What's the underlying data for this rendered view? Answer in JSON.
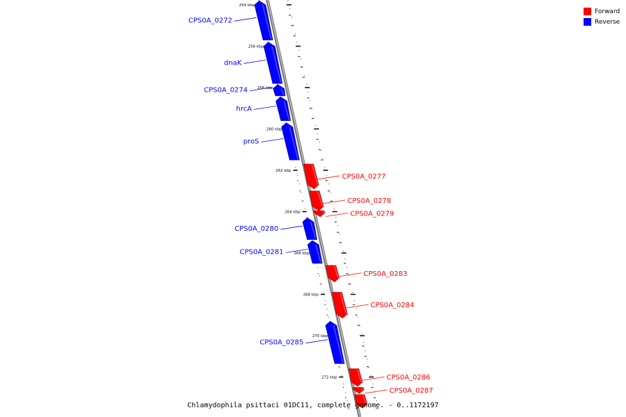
{
  "colors": {
    "forward": "#ff0000",
    "reverse": "#0000ff",
    "backbone": "#808080"
  },
  "legend": [
    {
      "label": "Forward",
      "color": "#ff0000"
    },
    {
      "label": "Reverse",
      "color": "#0000ff"
    }
  ],
  "caption": "Chlamydophila psittaci 01DC11, complete genome. - 0..1172197",
  "ticks": [
    {
      "kbp": 254,
      "label": "254 kbp"
    },
    {
      "kbp": 256,
      "label": "256 kbp"
    },
    {
      "kbp": 258,
      "label": "258 kbp"
    },
    {
      "kbp": 260,
      "label": "260 kbp"
    },
    {
      "kbp": 262,
      "label": "262 kbp"
    },
    {
      "kbp": 264,
      "label": "264 kbp"
    },
    {
      "kbp": 266,
      "label": "266 kbp"
    },
    {
      "kbp": 268,
      "label": "268 kbp"
    },
    {
      "kbp": 270,
      "label": "270 kbp"
    },
    {
      "kbp": 272,
      "label": "272 kbp"
    }
  ],
  "genes": [
    {
      "name": "CPS0A_0272",
      "strand": "reverse",
      "start_kbp": 253.8,
      "end_kbp": 255.7
    },
    {
      "name": "dnaK",
      "strand": "reverse",
      "start_kbp": 255.8,
      "end_kbp": 257.8
    },
    {
      "name": "CPS0A_0274",
      "strand": "reverse",
      "start_kbp": 257.85,
      "end_kbp": 258.4
    },
    {
      "name": "hrcA",
      "strand": "reverse",
      "start_kbp": 258.45,
      "end_kbp": 259.6
    },
    {
      "name": "proS",
      "strand": "reverse",
      "start_kbp": 259.7,
      "end_kbp": 261.5
    },
    {
      "name": "CPS0A_0277",
      "strand": "forward",
      "start_kbp": 261.7,
      "end_kbp": 262.9
    },
    {
      "name": "CPS0A_0278",
      "strand": "forward",
      "start_kbp": 263.0,
      "end_kbp": 263.95
    },
    {
      "name": "CPS0A_0279",
      "strand": "forward",
      "start_kbp": 263.95,
      "end_kbp": 264.25
    },
    {
      "name": "CPS0A_0280",
      "strand": "reverse",
      "start_kbp": 264.3,
      "end_kbp": 265.35
    },
    {
      "name": "CPS0A_0281",
      "strand": "reverse",
      "start_kbp": 265.4,
      "end_kbp": 266.5
    },
    {
      "name": "CPS0A_0283",
      "strand": "forward",
      "start_kbp": 266.6,
      "end_kbp": 267.4
    },
    {
      "name": "CPS0A_0284",
      "strand": "forward",
      "start_kbp": 267.9,
      "end_kbp": 269.15
    },
    {
      "name": "CPS0A_0285",
      "strand": "reverse",
      "start_kbp": 269.3,
      "end_kbp": 271.35
    },
    {
      "name": "CPS0A_0286",
      "strand": "forward",
      "start_kbp": 271.6,
      "end_kbp": 272.45
    },
    {
      "name": "CPS0A_0287",
      "strand": "forward",
      "start_kbp": 272.5,
      "end_kbp": 272.8
    },
    {
      "name": "",
      "strand": "forward",
      "start_kbp": 272.85,
      "end_kbp": 273.5
    }
  ]
}
